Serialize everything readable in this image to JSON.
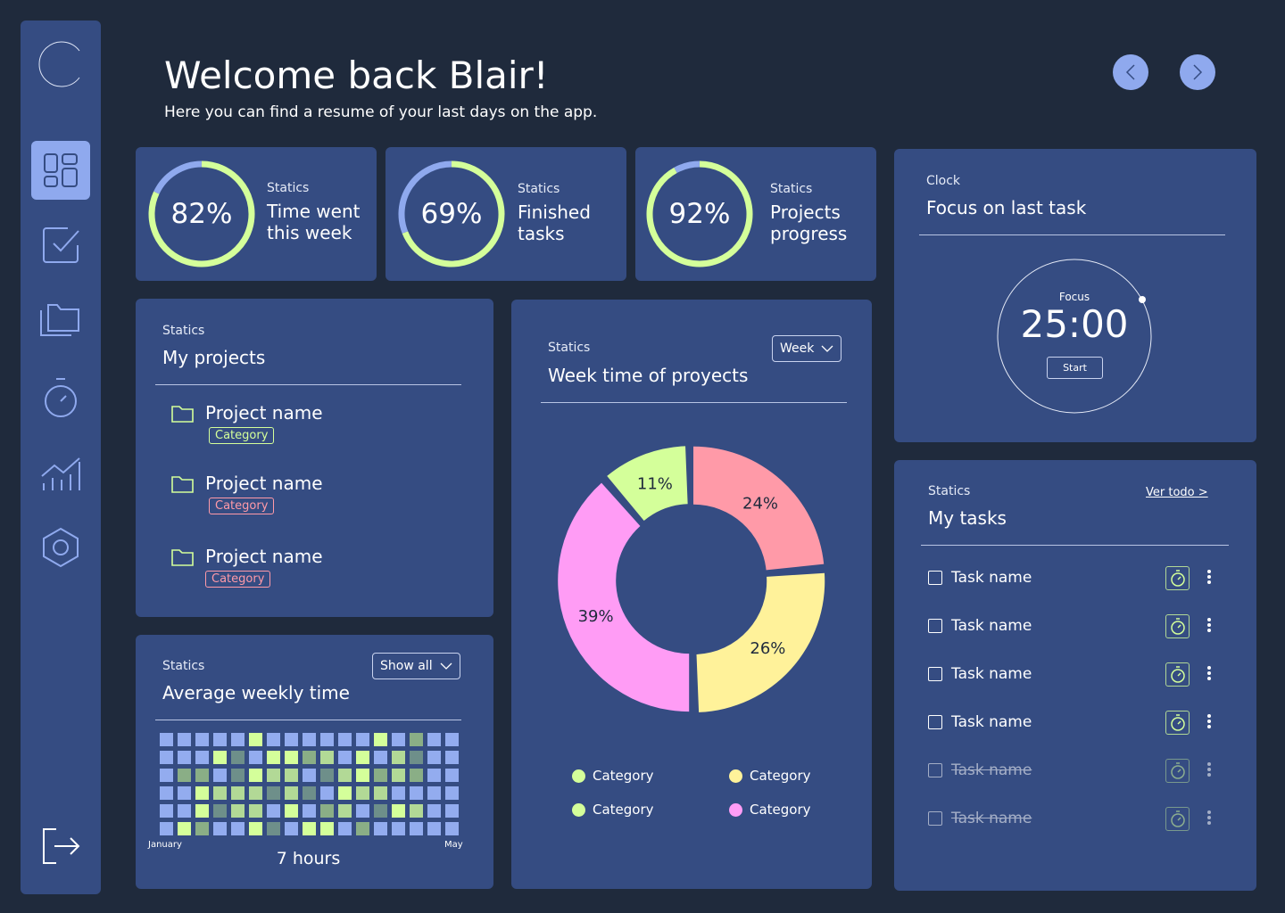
{
  "header": {
    "title": "Welcome back Blair!",
    "subtitle": "Here you can find a resume of your last days on the app."
  },
  "colors": {
    "background": "#1f2a3c",
    "card": "#354c82",
    "accent": "#8fa9ee",
    "green": "#d4ff9a",
    "pink": "#ff9aa8",
    "yellow": "#fff29a",
    "magenta": "#ff9cf5"
  },
  "sidebar": {
    "items": [
      {
        "icon": "dashboard-icon",
        "active": true
      },
      {
        "icon": "checkbox-icon"
      },
      {
        "icon": "folders-icon"
      },
      {
        "icon": "timer-icon"
      },
      {
        "icon": "chart-icon"
      },
      {
        "icon": "settings-hexagon-icon"
      }
    ],
    "logout_icon": "logout-icon"
  },
  "stats": [
    {
      "label": "Statics",
      "value": "82%",
      "percent": 82,
      "title_line1": "Time went",
      "title_line2": "this week"
    },
    {
      "label": "Statics",
      "value": "69%",
      "percent": 69,
      "title_line1": "Finished",
      "title_line2": "tasks"
    },
    {
      "label": "Statics",
      "value": "92%",
      "percent": 92,
      "title_line1": "Projects",
      "title_line2": "progress"
    }
  ],
  "clock": {
    "label": "Clock",
    "title": "Focus on last task",
    "focus_label": "Focus",
    "time": "25:00",
    "start_label": "Start"
  },
  "projects": {
    "label": "Statics",
    "title": "My projects",
    "items": [
      {
        "name": "Project name",
        "category": "Category",
        "color": "#d4ff9a"
      },
      {
        "name": "Project name",
        "category": "Category",
        "color": "#ff9aa8"
      },
      {
        "name": "Project name",
        "category": "Category",
        "color": "#ff9aa8"
      }
    ]
  },
  "weekly": {
    "label": "Statics",
    "title": "Week time of proyects",
    "select": "Week"
  },
  "chart_data": {
    "type": "pie",
    "donut": true,
    "slices": [
      {
        "label": "24%",
        "value": 24,
        "color": "#ff9aa8"
      },
      {
        "label": "26%",
        "value": 26,
        "color": "#fff29a"
      },
      {
        "label": "39%",
        "value": 39,
        "color": "#ff9cf5"
      },
      {
        "label": "11%",
        "value": 11,
        "color": "#d4ff9a"
      }
    ],
    "legend": [
      {
        "name": "Category",
        "color": "#d4ff9a"
      },
      {
        "name": "Category",
        "color": "#fff29a"
      },
      {
        "name": "Category",
        "color": "#d4ff9a"
      },
      {
        "name": "Category",
        "color": "#ff9cf5"
      }
    ]
  },
  "average": {
    "label": "Statics",
    "title": "Average weekly time",
    "select": "Show all",
    "start_label": "January",
    "end_label": "May",
    "total": "7 hours",
    "level_colors": [
      "#93acef",
      "#d4ff9a",
      "#b2d996",
      "#6e8f8a",
      "#8aae86"
    ],
    "grid": [
      [
        0,
        0,
        0,
        0,
        0,
        1,
        0,
        0,
        0,
        0,
        0,
        0,
        1,
        0,
        4,
        0,
        0
      ],
      [
        0,
        0,
        0,
        1,
        3,
        0,
        1,
        1,
        4,
        2,
        0,
        1,
        0,
        2,
        3,
        0,
        0
      ],
      [
        0,
        4,
        4,
        0,
        3,
        1,
        2,
        2,
        0,
        3,
        2,
        1,
        4,
        2,
        4,
        0,
        0
      ],
      [
        0,
        0,
        1,
        2,
        2,
        2,
        3,
        2,
        3,
        0,
        1,
        2,
        2,
        0,
        0,
        0,
        0
      ],
      [
        0,
        0,
        1,
        3,
        2,
        2,
        0,
        1,
        0,
        4,
        2,
        0,
        3,
        1,
        2,
        0,
        0
      ],
      [
        0,
        1,
        4,
        0,
        0,
        1,
        3,
        0,
        1,
        1,
        0,
        4,
        0,
        0,
        0,
        0,
        0
      ]
    ]
  },
  "tasks": {
    "label": "Statics",
    "title": "My tasks",
    "see_all": "Ver todo >",
    "items": [
      {
        "name": "Task name",
        "done": false
      },
      {
        "name": "Task name",
        "done": false
      },
      {
        "name": "Task name",
        "done": false
      },
      {
        "name": "Task name",
        "done": false
      },
      {
        "name": "Task name",
        "done": true
      },
      {
        "name": "Task name",
        "done": true
      }
    ]
  }
}
